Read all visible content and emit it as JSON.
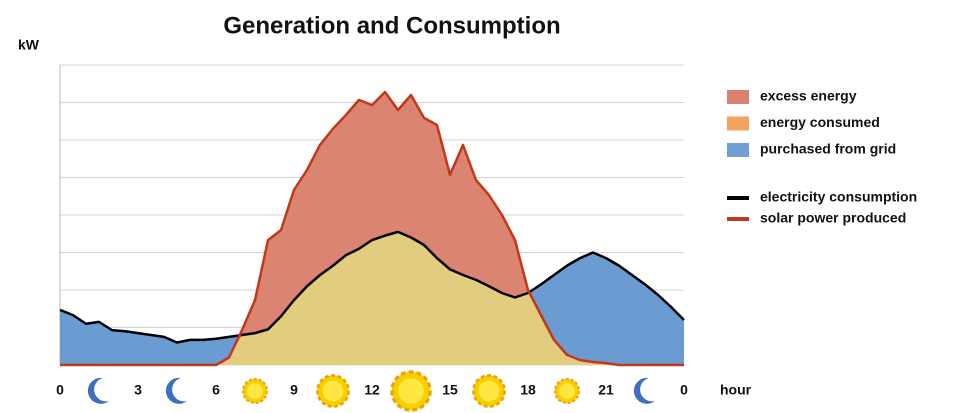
{
  "chart_data": {
    "type": "area-line",
    "title": "Generation and Consumption",
    "y_label": "kW",
    "x_label": "hour",
    "x": [
      0,
      0.5,
      1,
      1.5,
      2,
      2.5,
      3,
      3.5,
      4,
      4.5,
      5,
      5.5,
      6,
      6.5,
      7,
      7.5,
      8,
      8.5,
      9,
      9.5,
      10,
      10.5,
      11,
      11.5,
      12,
      12.5,
      13,
      13.5,
      14,
      14.5,
      15,
      15.5,
      16,
      16.5,
      17,
      17.5,
      18,
      18.5,
      19,
      19.5,
      20,
      20.5,
      21,
      21.5,
      22,
      22.5,
      23,
      23.5,
      24
    ],
    "series": [
      {
        "name": "electricity consumption",
        "color": "#000000",
        "values": [
          1.47,
          1.33,
          1.1,
          1.15,
          0.93,
          0.9,
          0.85,
          0.8,
          0.75,
          0.6,
          0.67,
          0.67,
          0.7,
          0.75,
          0.8,
          0.85,
          0.95,
          1.3,
          1.73,
          2.1,
          2.4,
          2.65,
          2.93,
          3.1,
          3.33,
          3.45,
          3.55,
          3.4,
          3.2,
          2.85,
          2.55,
          2.4,
          2.27,
          2.1,
          1.92,
          1.8,
          1.92,
          2.15,
          2.4,
          2.65,
          2.85,
          3.0,
          2.85,
          2.65,
          2.4,
          2.15,
          1.87,
          1.55,
          1.2
        ]
      },
      {
        "name": "solar power produced",
        "color": "#c0391b",
        "values": [
          0,
          0,
          0,
          0,
          0,
          0,
          0,
          0,
          0,
          0,
          0,
          0,
          0,
          0.2,
          0.93,
          1.73,
          3.33,
          3.6,
          4.67,
          5.2,
          5.87,
          6.3,
          6.67,
          7.07,
          6.93,
          7.28,
          6.8,
          7.2,
          6.59,
          6.4,
          5.07,
          5.87,
          4.93,
          4.53,
          4.0,
          3.33,
          2.0,
          1.33,
          0.67,
          0.27,
          0.13,
          0.08,
          0.05,
          0,
          0,
          0,
          0,
          0,
          0
        ]
      }
    ],
    "areas": [
      {
        "name": "excess energy",
        "color": "#d9806e",
        "fill_color": "#dc8472"
      },
      {
        "name": "energy consumed",
        "color": "#f2a35e",
        "fill_color": "#e2cd7e"
      },
      {
        "name": "purchased from grid",
        "color": "#6f9fd4",
        "fill_color": "#6a9bd1"
      }
    ],
    "xlim": [
      0,
      24
    ],
    "xticks": [
      0,
      3,
      6,
      9,
      12,
      15,
      18,
      21,
      {
        "value": 24,
        "label": "0"
      }
    ],
    "ylim": [
      0,
      8
    ],
    "yticks": [
      0,
      1,
      2,
      3,
      4,
      5,
      6,
      7,
      8
    ],
    "grid": true
  }
}
